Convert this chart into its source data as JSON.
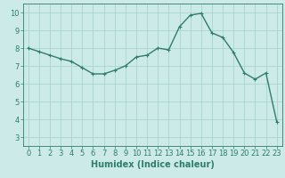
{
  "x": [
    0,
    1,
    2,
    3,
    4,
    5,
    6,
    7,
    8,
    9,
    10,
    11,
    12,
    13,
    14,
    15,
    16,
    17,
    18,
    19,
    20,
    21,
    22,
    23
  ],
  "y": [
    8.0,
    7.8,
    7.6,
    7.4,
    7.25,
    6.9,
    6.55,
    6.55,
    6.75,
    7.0,
    7.5,
    7.6,
    8.0,
    7.9,
    9.2,
    9.85,
    9.95,
    8.85,
    8.6,
    7.75,
    6.6,
    6.25,
    6.6,
    3.85
  ],
  "line_color": "#2e7d6e",
  "marker": "+",
  "marker_size": 3,
  "linewidth": 1.0,
  "bg_color": "#cceae7",
  "grid_color": "#aad4d0",
  "xlabel": "Humidex (Indice chaleur)",
  "xlim": [
    -0.5,
    23.5
  ],
  "ylim": [
    2.5,
    10.5
  ],
  "yticks": [
    3,
    4,
    5,
    6,
    7,
    8,
    9,
    10
  ],
  "xticks": [
    0,
    1,
    2,
    3,
    4,
    5,
    6,
    7,
    8,
    9,
    10,
    11,
    12,
    13,
    14,
    15,
    16,
    17,
    18,
    19,
    20,
    21,
    22,
    23
  ],
  "tick_color": "#2e7d6e",
  "label_color": "#2e7d6e",
  "xlabel_fontsize": 7.0,
  "tick_fontsize": 6.0
}
